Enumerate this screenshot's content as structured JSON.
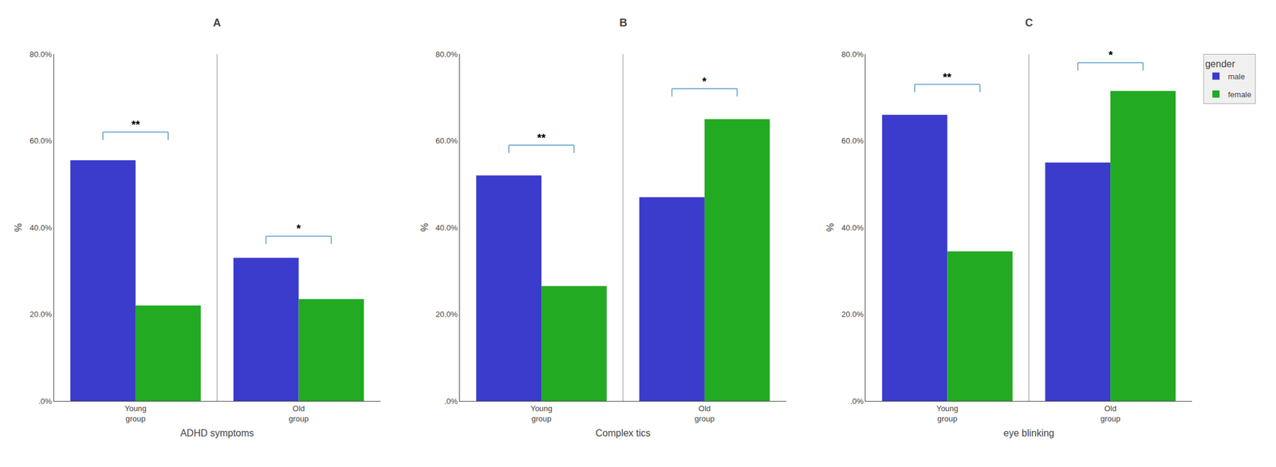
{
  "chart_data": [
    {
      "type": "bar",
      "title": "A",
      "xlabel": "ADHD symptoms",
      "ylabel": "%",
      "categories": [
        "Young\ngroup",
        "Old\ngroup"
      ],
      "series": [
        {
          "name": "male",
          "color": "#3B3BCC",
          "values": [
            55.5,
            33.0
          ]
        },
        {
          "name": "female",
          "color": "#22AA22",
          "values": [
            22.0,
            23.5
          ]
        }
      ],
      "ylim": [
        0,
        80
      ],
      "yticks": [
        {
          "value": 0,
          "label": ".0%"
        },
        {
          "value": 20,
          "label": "20.0%"
        },
        {
          "value": 40,
          "label": "40.0%"
        },
        {
          "value": 60,
          "label": "60.0%"
        },
        {
          "value": 80,
          "label": "80.0%"
        }
      ],
      "annotations": [
        {
          "text": "**",
          "category": "Young\ngroup",
          "y": 62,
          "color": "#5599CC"
        },
        {
          "text": "*",
          "category": "Old\ngroup",
          "y": 38,
          "color": "#5599CC"
        }
      ],
      "legend_title": "gender",
      "legend": "upper right",
      "grid": false
    },
    {
      "type": "bar",
      "title": "B",
      "xlabel": "Complex tics",
      "ylabel": "%",
      "categories": [
        "Young\ngroup",
        "Old\ngroup"
      ],
      "series": [
        {
          "name": "male",
          "color": "#3B3BCC",
          "values": [
            52.0,
            47.0
          ]
        },
        {
          "name": "female",
          "color": "#22AA22",
          "values": [
            26.5,
            65.0
          ]
        }
      ],
      "ylim": [
        0,
        80
      ],
      "yticks": [
        {
          "value": 0,
          "label": ".0%"
        },
        {
          "value": 20,
          "label": "20.0%"
        },
        {
          "value": 40,
          "label": "40.0%"
        },
        {
          "value": 60,
          "label": "60.0%"
        },
        {
          "value": 80,
          "label": "80.0%"
        }
      ],
      "annotations": [
        {
          "text": "**",
          "category": "Young\ngroup",
          "y": 59,
          "color": "#5599CC"
        },
        {
          "text": "*",
          "category": "Old\ngroup",
          "y": 72,
          "color": "#5599CC"
        }
      ],
      "legend_title": "gender",
      "legend": "upper right",
      "grid": false
    },
    {
      "type": "bar",
      "title": "C",
      "xlabel": "eye blinking",
      "ylabel": "%",
      "categories": [
        "Young\ngroup",
        "Old\ngroup"
      ],
      "series": [
        {
          "name": "male",
          "color": "#3B3BCC",
          "values": [
            66.0,
            55.0
          ]
        },
        {
          "name": "female",
          "color": "#22AA22",
          "values": [
            34.5,
            71.5
          ]
        }
      ],
      "ylim": [
        0,
        80
      ],
      "yticks": [
        {
          "value": 0,
          "label": ".0%"
        },
        {
          "value": 20,
          "label": "20.0%"
        },
        {
          "value": 40,
          "label": "40.0%"
        },
        {
          "value": 60,
          "label": "60.0%"
        },
        {
          "value": 80,
          "label": "80.0%"
        }
      ],
      "annotations": [
        {
          "text": "**",
          "category": "Young\ngroup",
          "y": 73,
          "color": "#5599CC"
        },
        {
          "text": "*",
          "category": "Old\ngroup",
          "y": 78,
          "color": "#5599CC"
        }
      ],
      "legend_title": "gender",
      "legend": "upper right",
      "grid": false
    }
  ]
}
